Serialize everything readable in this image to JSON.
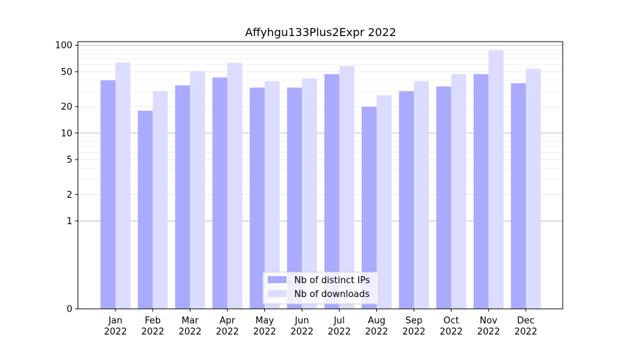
{
  "chart_data": {
    "type": "bar",
    "title": "Affyhgu133Plus2Expr 2022",
    "xlabel": "",
    "ylabel": "",
    "yscale": "symlog",
    "ylim": [
      0,
      110
    ],
    "y_ticks": [
      0,
      1,
      2,
      5,
      10,
      20,
      50,
      100
    ],
    "categories": [
      [
        "Jan",
        "2022"
      ],
      [
        "Feb",
        "2022"
      ],
      [
        "Mar",
        "2022"
      ],
      [
        "Apr",
        "2022"
      ],
      [
        "May",
        "2022"
      ],
      [
        "Jun",
        "2022"
      ],
      [
        "Jul",
        "2022"
      ],
      [
        "Aug",
        "2022"
      ],
      [
        "Sep",
        "2022"
      ],
      [
        "Oct",
        "2022"
      ],
      [
        "Nov",
        "2022"
      ],
      [
        "Dec",
        "2022"
      ]
    ],
    "series": [
      {
        "name": "Nb of distinct IPs",
        "color": "#aaaaff",
        "values": [
          40,
          18,
          35,
          43,
          33,
          33,
          47,
          20,
          30,
          34,
          47,
          37
        ]
      },
      {
        "name": "Nb of downloads",
        "color": "#dcdcff",
        "values": [
          64,
          30,
          51,
          63,
          39,
          42,
          58,
          27,
          39,
          47,
          88,
          54
        ]
      }
    ],
    "legend": "lower-center",
    "grid": true
  }
}
